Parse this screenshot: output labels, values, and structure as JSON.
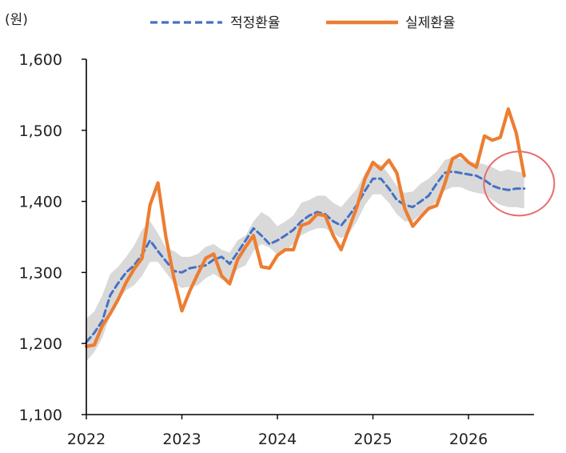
{
  "chart_data": {
    "type": "line",
    "title": "",
    "unit_label": "(원)",
    "xlabel": "",
    "ylabel": "",
    "ylim": [
      1100,
      1600
    ],
    "y_ticks": [
      1100,
      1200,
      1300,
      1400,
      1500,
      1600
    ],
    "y_tick_labels": [
      "1,100",
      "1,200",
      "1,300",
      "1,400",
      "1,500",
      "1,600"
    ],
    "x_ticks": [
      2022,
      2023,
      2024,
      2025,
      2026
    ],
    "x_tick_labels": [
      "2022",
      "2023",
      "2024",
      "2025",
      "2026"
    ],
    "xlim": [
      2022,
      2026.67
    ],
    "grid": false,
    "legend_position": "top",
    "x": [
      2022.0,
      2022.083,
      2022.167,
      2022.25,
      2022.333,
      2022.417,
      2022.5,
      2022.583,
      2022.667,
      2022.75,
      2022.833,
      2022.917,
      2023.0,
      2023.083,
      2023.167,
      2023.25,
      2023.333,
      2023.417,
      2023.5,
      2023.583,
      2023.667,
      2023.75,
      2023.833,
      2023.917,
      2024.0,
      2024.083,
      2024.167,
      2024.25,
      2024.333,
      2024.417,
      2024.5,
      2024.583,
      2024.667,
      2024.75,
      2024.833,
      2024.917,
      2025.0,
      2025.083,
      2025.167,
      2025.25,
      2025.333,
      2025.417,
      2025.5,
      2025.583,
      2025.667,
      2025.75,
      2025.833,
      2025.917,
      2026.0,
      2026.083,
      2026.167,
      2026.25,
      2026.333,
      2026.417,
      2026.5,
      2026.583
    ],
    "band": {
      "upper": [
        1235,
        1245,
        1268,
        1298,
        1308,
        1322,
        1338,
        1360,
        1372,
        1355,
        1335,
        1330,
        1322,
        1322,
        1326,
        1336,
        1340,
        1332,
        1328,
        1345,
        1352,
        1372,
        1385,
        1378,
        1365,
        1372,
        1380,
        1398,
        1402,
        1408,
        1408,
        1398,
        1392,
        1405,
        1418,
        1440,
        1452,
        1452,
        1438,
        1422,
        1412,
        1414,
        1425,
        1432,
        1442,
        1458,
        1462,
        1460,
        1455,
        1455,
        1452,
        1448,
        1442,
        1445,
        1442,
        1440
      ],
      "lower": [
        1175,
        1188,
        1208,
        1240,
        1260,
        1275,
        1282,
        1295,
        1315,
        1315,
        1300,
        1285,
        1278,
        1280,
        1282,
        1292,
        1298,
        1290,
        1288,
        1305,
        1310,
        1330,
        1340,
        1335,
        1325,
        1330,
        1340,
        1352,
        1358,
        1362,
        1362,
        1355,
        1348,
        1355,
        1372,
        1395,
        1410,
        1410,
        1398,
        1382,
        1372,
        1372,
        1382,
        1390,
        1400,
        1415,
        1420,
        1420,
        1415,
        1412,
        1410,
        1402,
        1395,
        1392,
        1392,
        1390
      ]
    },
    "series": [
      {
        "name": "적정환율",
        "style": "dashed",
        "color": "#4472C4",
        "values": [
          1202,
          1215,
          1232,
          1268,
          1285,
          1300,
          1310,
          1325,
          1345,
          1330,
          1316,
          1302,
          1300,
          1306,
          1308,
          1310,
          1318,
          1322,
          1312,
          1328,
          1345,
          1362,
          1352,
          1340,
          1345,
          1352,
          1360,
          1372,
          1380,
          1385,
          1382,
          1372,
          1366,
          1380,
          1395,
          1415,
          1432,
          1432,
          1418,
          1402,
          1395,
          1392,
          1400,
          1408,
          1425,
          1440,
          1442,
          1440,
          1438,
          1436,
          1430,
          1422,
          1418,
          1416,
          1418,
          1418
        ]
      },
      {
        "name": "실제환율",
        "style": "solid",
        "color": "#ED7D31",
        "values": [
          1196,
          1198,
          1225,
          1242,
          1262,
          1286,
          1305,
          1320,
          1395,
          1426,
          1350,
          1292,
          1246,
          1274,
          1298,
          1320,
          1326,
          1295,
          1284,
          1318,
          1336,
          1352,
          1308,
          1306,
          1324,
          1332,
          1332,
          1366,
          1370,
          1382,
          1380,
          1352,
          1332,
          1362,
          1392,
          1432,
          1455,
          1445,
          1458,
          1440,
          1390,
          1365,
          1378,
          1390,
          1394,
          1424,
          1460,
          1466,
          1455,
          1448,
          1492,
          1486,
          1490,
          1530,
          1496,
          1436
        ]
      }
    ],
    "annotation": {
      "type": "circle",
      "color": "#E86C6C",
      "center_x": 2026.53,
      "center_y": 1425
    }
  }
}
